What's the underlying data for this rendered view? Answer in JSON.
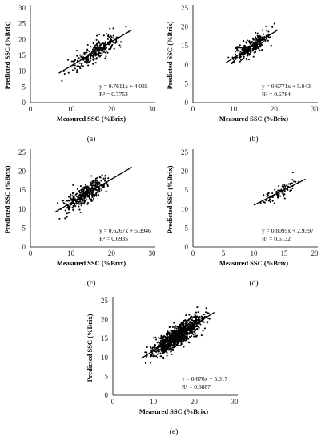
{
  "chart_data": [
    {
      "id": "a",
      "type": "scatter",
      "caption": "(a)",
      "xlabel": "Measured SSC (%Brix)",
      "ylabel": "Predicted SSC (%Brix)",
      "xlim": [
        0,
        30
      ],
      "ylim": [
        0,
        30
      ],
      "xticks": [
        0,
        10,
        20,
        30
      ],
      "yticks": [
        0,
        5,
        10,
        15,
        20,
        25,
        30
      ],
      "equation": "y = 0.7611x + 4.035",
      "r2": "R² = 0.7753",
      "slope": 0.7611,
      "intercept": 4.035,
      "fit_x": [
        7,
        25
      ],
      "point_x_range": [
        7,
        25
      ],
      "point_count": 260,
      "scatter_sd": 1.6,
      "seed": 11
    },
    {
      "id": "b",
      "type": "scatter",
      "caption": "(b)",
      "xlabel": "Measured SSC (%Brix)",
      "ylabel": "Predicted SSC (%Brix)",
      "xlim": [
        0,
        30
      ],
      "ylim": [
        0,
        25
      ],
      "xticks": [
        0,
        10,
        20,
        30
      ],
      "yticks": [
        0,
        5,
        10,
        15,
        20,
        25
      ],
      "equation": "y = 0.6771x + 5.043",
      "r2": "R² = 0.6784",
      "slope": 0.6771,
      "intercept": 5.043,
      "fit_x": [
        8,
        21
      ],
      "point_x_range": [
        8,
        21
      ],
      "point_count": 300,
      "scatter_sd": 1.1,
      "seed": 22
    },
    {
      "id": "c",
      "type": "scatter",
      "caption": "(c)",
      "xlabel": "Measured SSC (%Brix)",
      "ylabel": "Predicted SSC (%Brix)",
      "xlim": [
        0,
        30
      ],
      "ylim": [
        0,
        25
      ],
      "xticks": [
        0,
        10,
        20,
        30
      ],
      "yticks": [
        0,
        5,
        10,
        15,
        20,
        25
      ],
      "equation": "y = 0.6267x + 5.3946",
      "r2": "R² = 0.6935",
      "slope": 0.6267,
      "intercept": 5.3946,
      "fit_x": [
        6,
        25
      ],
      "point_x_range": [
        6,
        21
      ],
      "point_count": 360,
      "scatter_sd": 1.3,
      "seed": 33
    },
    {
      "id": "d",
      "type": "scatter",
      "caption": "(d)",
      "xlabel": "Measured SSC (%Brix)",
      "ylabel": "Predicted SSC (%Brix)",
      "xlim": [
        0,
        20
      ],
      "ylim": [
        0,
        25
      ],
      "xticks": [
        0,
        5,
        10,
        15,
        20
      ],
      "yticks": [
        0,
        5,
        10,
        15,
        20,
        25
      ],
      "equation": "y = 0.8095x + 2.9397",
      "r2": "R² = 0.6132",
      "slope": 0.8095,
      "intercept": 2.9397,
      "fit_x": [
        10,
        18.5
      ],
      "point_x_range": [
        10,
        18.5
      ],
      "point_count": 90,
      "scatter_sd": 1.0,
      "seed": 44
    },
    {
      "id": "e",
      "type": "scatter",
      "caption": "(e)",
      "xlabel": "Measured SSC (%Brix)",
      "ylabel": "Predicted SSC (%Brix)",
      "xlim": [
        0,
        30
      ],
      "ylim": [
        0,
        25
      ],
      "xticks": [
        0,
        10,
        20,
        30
      ],
      "yticks": [
        0,
        5,
        10,
        15,
        20,
        25
      ],
      "equation": "y = 0.676x + 5.017",
      "r2": "R² = 0.6887",
      "slope": 0.676,
      "intercept": 5.017,
      "fit_x": [
        7,
        25
      ],
      "point_x_range": [
        7,
        25
      ],
      "point_count": 1000,
      "scatter_sd": 1.35,
      "seed": 55
    }
  ]
}
